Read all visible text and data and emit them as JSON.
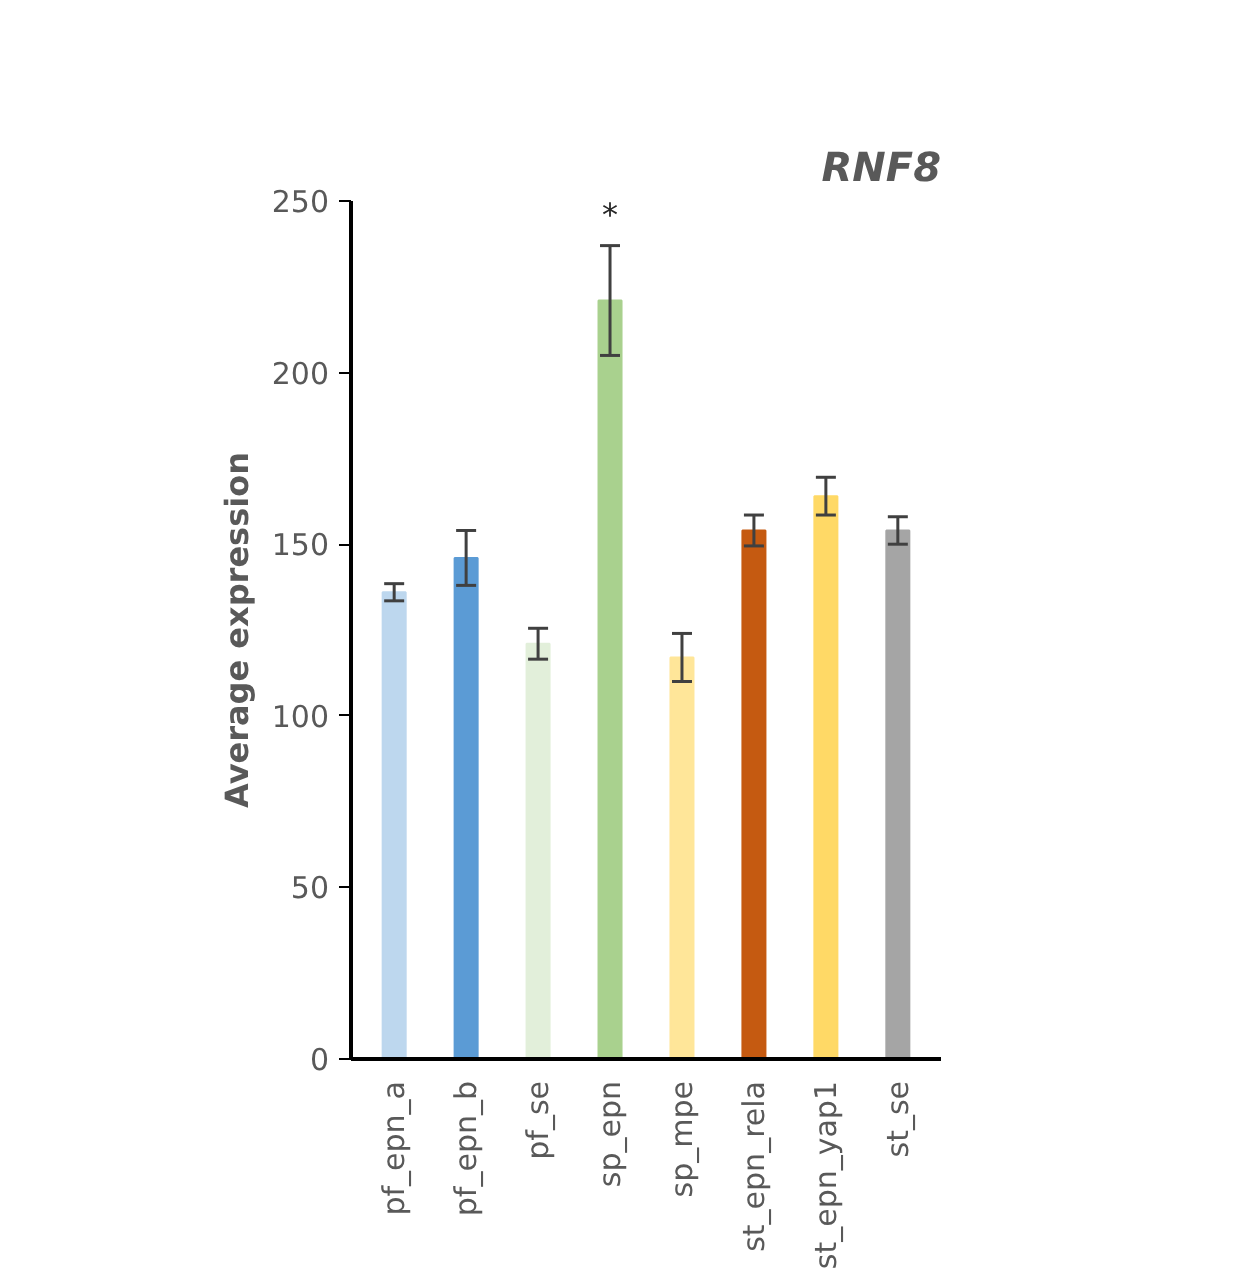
{
  "chart_data": {
    "type": "bar",
    "title": "RNF8",
    "ylabel": "Average expression",
    "categories": [
      "pf_epn_a",
      "pf_epn_b",
      "pf_se",
      "sp_epn",
      "sp_mpe",
      "st_epn_rela",
      "st_epn_yap1",
      "st_se"
    ],
    "values": [
      136,
      146,
      121,
      221,
      117,
      154,
      164,
      154
    ],
    "errors": [
      2.5,
      8,
      4.5,
      16,
      7,
      4.5,
      5.5,
      4
    ],
    "colors": [
      "#bdd7ee",
      "#5b9bd5",
      "#e2efda",
      "#a9d18e",
      "#ffe699",
      "#c55a11",
      "#ffd966",
      "#a5a5a5"
    ],
    "ylim": [
      0,
      250
    ],
    "yticks": [
      0,
      50,
      100,
      150,
      200,
      250
    ],
    "grid": false,
    "annotations": [
      "*"
    ]
  }
}
